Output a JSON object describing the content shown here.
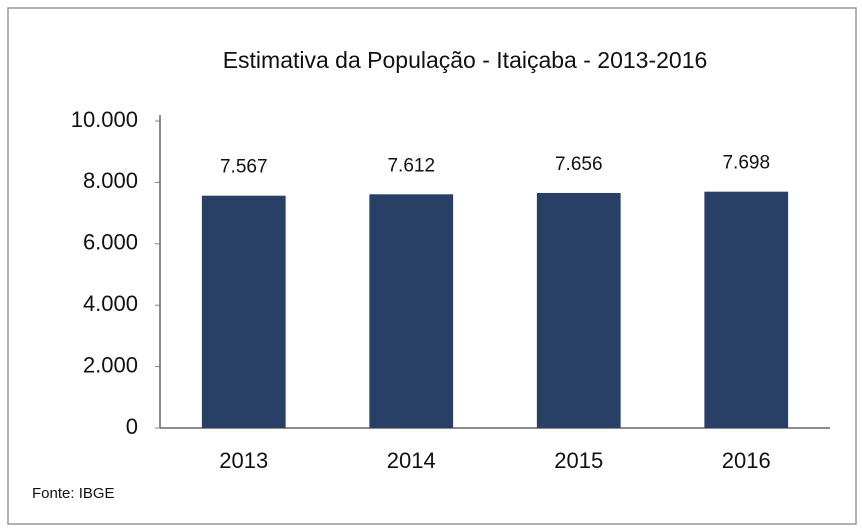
{
  "chart_data": {
    "type": "bar",
    "title": "Estimativa da População - Itaiçaba - 2013-2016",
    "categories": [
      "2013",
      "2014",
      "2015",
      "2016"
    ],
    "values": [
      7567,
      7612,
      7656,
      7698
    ],
    "value_labels": [
      "7.567",
      "7.612",
      "7.656",
      "7.698"
    ],
    "color": "#283f66",
    "ylim": [
      0,
      10000
    ],
    "yticks": [
      0,
      {
        "value": 2000,
        "label": "2.000"
      },
      {
        "value": 4000,
        "label": "4.000"
      },
      {
        "value": 6000,
        "label": "6.000"
      },
      {
        "value": 8000,
        "label": "8.000"
      },
      {
        "value": 10000,
        "label": "10.000"
      }
    ],
    "grid": false,
    "source": "Fonte: IBGE"
  }
}
